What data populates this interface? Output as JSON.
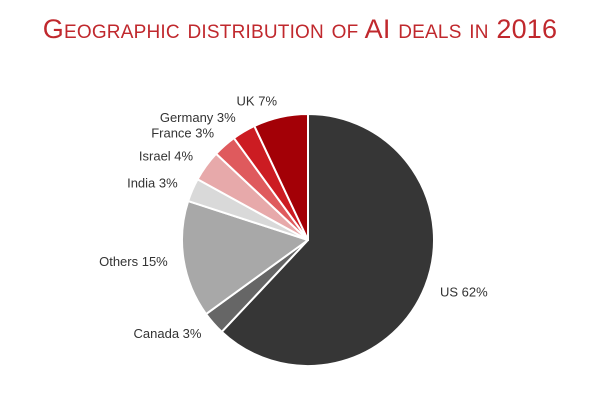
{
  "chart_data": {
    "type": "pie",
    "title": "Geographic distribution of AI deals in 2016",
    "start_angle_deg": 0,
    "direction": "clockwise",
    "slices": [
      {
        "label": "US",
        "value": 62,
        "display": "US 62%",
        "color": "#363636"
      },
      {
        "label": "Canada",
        "value": 3,
        "display": "Canada 3%",
        "color": "#666666"
      },
      {
        "label": "Others",
        "value": 15,
        "display": "Others 15%",
        "color": "#a8a8a8"
      },
      {
        "label": "India",
        "value": 3,
        "display": "India 3%",
        "color": "#d9d9d9"
      },
      {
        "label": "Israel",
        "value": 4,
        "display": "Israel 4%",
        "color": "#e7a9aa"
      },
      {
        "label": "France",
        "value": 3,
        "display": "France 3%",
        "color": "#df5a5d"
      },
      {
        "label": "Germany",
        "value": 3,
        "display": "Germany 3%",
        "color": "#cc1c22"
      },
      {
        "label": "UK",
        "value": 7,
        "display": "UK 7%",
        "color": "#a30006"
      }
    ],
    "legend": "none",
    "grid": false
  }
}
